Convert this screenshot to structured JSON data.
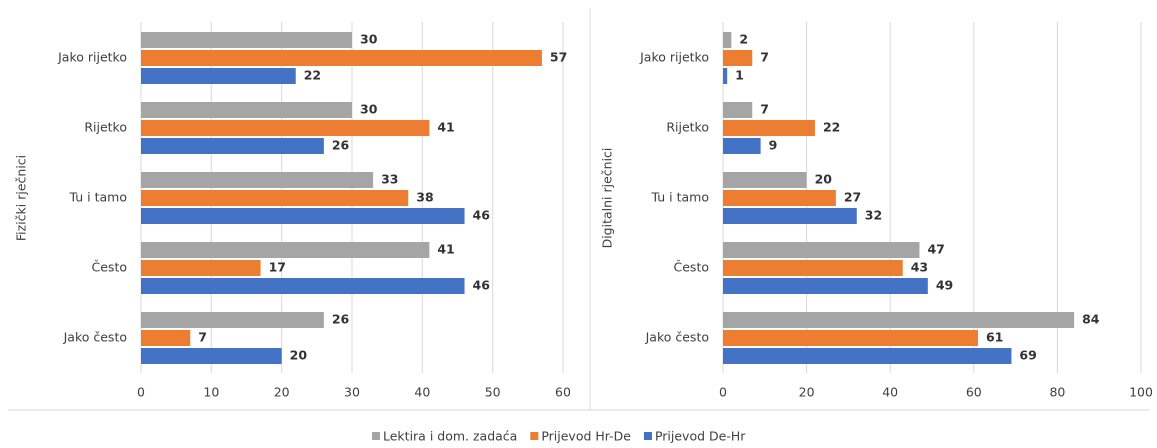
{
  "chart_data": [
    {
      "type": "bar",
      "orientation": "horizontal",
      "y_label": "Fizički rječnici",
      "categories": [
        "Jako rijetko",
        "Rijetko",
        "Tu i tamo",
        "Često",
        "Jako često"
      ],
      "series": [
        {
          "name": "Lektira i dom. zadaća",
          "color": "#a5a5a5",
          "values": [
            30,
            30,
            33,
            41,
            26
          ]
        },
        {
          "name": "Prijevod Hr-De",
          "color": "#ed7d31",
          "values": [
            57,
            41,
            38,
            17,
            7
          ]
        },
        {
          "name": "Prijevod De-Hr",
          "color": "#4472c4",
          "values": [
            22,
            26,
            46,
            46,
            20
          ]
        }
      ],
      "xlim": [
        0,
        60
      ],
      "xticks": [
        0,
        10,
        20,
        30,
        40,
        50,
        60
      ],
      "grid": true
    },
    {
      "type": "bar",
      "orientation": "horizontal",
      "y_label": "Digitalni rječnici",
      "categories": [
        "Jako rijetko",
        "Rijetko",
        "Tu i tamo",
        "Često",
        "Jako često"
      ],
      "series": [
        {
          "color": "#a5a5a5",
          "values": [
            2,
            7,
            20,
            47,
            84
          ]
        },
        {
          "color": "#ed7d31",
          "values": [
            7,
            22,
            27,
            43,
            61
          ]
        },
        {
          "color": "#4472c4",
          "values": [
            1,
            9,
            32,
            49,
            69
          ]
        }
      ],
      "xlim": [
        0,
        100
      ],
      "xticks": [
        0,
        20,
        40,
        60,
        80,
        100
      ],
      "grid": true
    }
  ]
}
